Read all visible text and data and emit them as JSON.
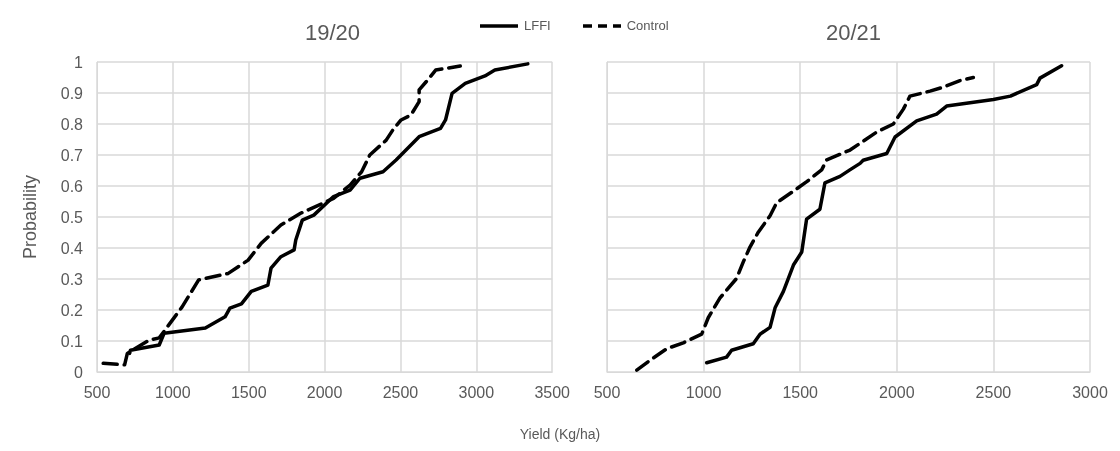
{
  "chart_data": [
    {
      "type": "line",
      "title": "19/20",
      "ylabel": "Probability",
      "xlabel": "Yield (Kg/ha)",
      "xlim": [
        500,
        3500
      ],
      "xticks": [
        500,
        1000,
        1500,
        2000,
        2500,
        3000,
        3500
      ],
      "ylim": [
        0,
        1
      ],
      "yticks": [
        0,
        0.1,
        0.2,
        0.3,
        0.4,
        0.5,
        0.6,
        0.7,
        0.8,
        0.9,
        1
      ],
      "grid": true,
      "legend": "top right",
      "marker": "none",
      "series": [
        {
          "name": "LFFI",
          "color": "#000000",
          "line_style": "solid",
          "x": [
            715,
            720,
            910,
            942,
            1214,
            1344,
            1376,
            1452,
            1517,
            1626,
            1647,
            1712,
            1799,
            1810,
            1853,
            1929,
            2059,
            2168,
            2233,
            2385,
            2471,
            2623,
            2764,
            2797,
            2840,
            2927,
            3057,
            3122,
            3339
          ],
          "values": [
            0.06,
            0.07,
            0.087,
            0.125,
            0.142,
            0.178,
            0.206,
            0.22,
            0.26,
            0.28,
            0.335,
            0.372,
            0.394,
            0.426,
            0.49,
            0.506,
            0.566,
            0.587,
            0.625,
            0.646,
            0.684,
            0.759,
            0.786,
            0.813,
            0.899,
            0.931,
            0.955,
            0.974,
            0.994
          ]
        },
        {
          "name": "Control",
          "color": "#000000",
          "line_style": "dashed",
          "x": [
            541,
            682,
            700,
            845,
            910,
            1061,
            1170,
            1365,
            1496,
            1582,
            1712,
            1842,
            2059,
            2168,
            2244,
            2298,
            2406,
            2450,
            2504,
            2569,
            2623,
            2623,
            2688,
            2732,
            2894
          ],
          "values": [
            0.028,
            0.023,
            0.06,
            0.103,
            0.11,
            0.21,
            0.297,
            0.318,
            0.361,
            0.415,
            0.474,
            0.512,
            0.56,
            0.603,
            0.646,
            0.7,
            0.748,
            0.781,
            0.813,
            0.829,
            0.872,
            0.91,
            0.947,
            0.974,
            0.987
          ]
        }
      ]
    },
    {
      "type": "line",
      "title": "20/21",
      "xlim": [
        500,
        3000
      ],
      "xticks": [
        500,
        1000,
        1500,
        2000,
        2500,
        3000
      ],
      "ylim": [
        0,
        1
      ],
      "yticks": [
        0,
        0.1,
        0.2,
        0.3,
        0.4,
        0.5,
        0.6,
        0.7,
        0.8,
        0.9,
        1
      ],
      "tick_labels": "x",
      "grid": true,
      "marker": "none",
      "series": [
        {
          "color": "#000000",
          "line_style": "solid",
          "x": [
            1016,
            1119,
            1145,
            1257,
            1292,
            1344,
            1370,
            1413,
            1465,
            1508,
            1533,
            1602,
            1628,
            1706,
            1757,
            1810,
            1826,
            1948,
            1991,
            2103,
            2206,
            2258,
            2500,
            2588,
            2724,
            2741,
            2853
          ],
          "values": [
            0.03,
            0.048,
            0.07,
            0.091,
            0.122,
            0.144,
            0.207,
            0.26,
            0.345,
            0.387,
            0.493,
            0.525,
            0.61,
            0.631,
            0.652,
            0.673,
            0.683,
            0.705,
            0.758,
            0.81,
            0.832,
            0.858,
            0.879,
            0.89,
            0.927,
            0.948,
            0.988
          ]
        },
        {
          "color": "#000000",
          "line_style": "dashed",
          "x": [
            654,
            723,
            809,
            895,
            990,
            1024,
            1085,
            1171,
            1206,
            1240,
            1283,
            1344,
            1378,
            1464,
            1534,
            1611,
            1637,
            1758,
            1896,
            1982,
            2034,
            2068,
            2172,
            2241,
            2327,
            2396
          ],
          "values": [
            0.006,
            0.038,
            0.075,
            0.094,
            0.122,
            0.175,
            0.239,
            0.302,
            0.356,
            0.403,
            0.451,
            0.504,
            0.546,
            0.583,
            0.614,
            0.652,
            0.684,
            0.716,
            0.774,
            0.8,
            0.848,
            0.89,
            0.906,
            0.919,
            0.94,
            0.95
          ]
        }
      ]
    }
  ]
}
